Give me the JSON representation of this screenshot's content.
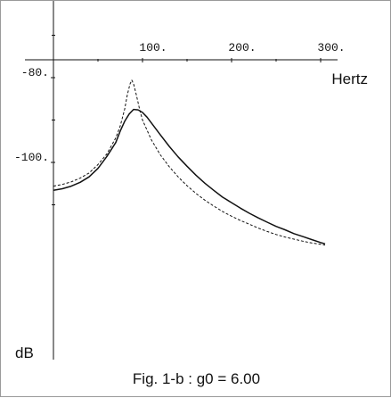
{
  "chart_data": {
    "type": "line",
    "caption": "Fig. 1-b : g0 = 6.00",
    "xlabel": "Hertz",
    "ylabel": "dB",
    "xlim": [
      -5,
      310
    ],
    "ylim": [
      -142,
      -71
    ],
    "x_ticks": [
      100,
      200,
      300
    ],
    "x_tick_labels": [
      "100.",
      "200.",
      "300."
    ],
    "y_ticks": [
      -80,
      -100
    ],
    "y_tick_labels": [
      "-80.",
      "-100."
    ],
    "grid": false,
    "series": [
      {
        "style": "solid",
        "points": [
          [
            0,
            -106.6
          ],
          [
            10,
            -106.2
          ],
          [
            20,
            -105.6
          ],
          [
            30,
            -104.7
          ],
          [
            40,
            -103.4
          ],
          [
            50,
            -101.4
          ],
          [
            60,
            -98.6
          ],
          [
            70,
            -95.3
          ],
          [
            75,
            -92.6
          ],
          [
            80,
            -90.3
          ],
          [
            85,
            -88.6
          ],
          [
            90,
            -87.5
          ],
          [
            95,
            -87.6
          ],
          [
            100,
            -88.2
          ],
          [
            105,
            -89.3
          ],
          [
            110,
            -90.7
          ],
          [
            120,
            -93.5
          ],
          [
            130,
            -96.2
          ],
          [
            140,
            -98.7
          ],
          [
            150,
            -100.9
          ],
          [
            160,
            -103.0
          ],
          [
            170,
            -104.9
          ],
          [
            180,
            -106.6
          ],
          [
            190,
            -108.2
          ],
          [
            200,
            -109.5
          ],
          [
            210,
            -110.8
          ],
          [
            220,
            -112.0
          ],
          [
            230,
            -113.1
          ],
          [
            240,
            -114.1
          ],
          [
            250,
            -115.1
          ],
          [
            260,
            -115.9
          ],
          [
            270,
            -116.8
          ],
          [
            280,
            -117.5
          ],
          [
            290,
            -118.2
          ],
          [
            300,
            -118.9
          ],
          [
            305,
            -119.2
          ]
        ]
      },
      {
        "style": "dashed",
        "points": [
          [
            0,
            -105.6
          ],
          [
            10,
            -105.2
          ],
          [
            20,
            -104.6
          ],
          [
            30,
            -103.7
          ],
          [
            40,
            -102.5
          ],
          [
            50,
            -100.5
          ],
          [
            60,
            -98.0
          ],
          [
            70,
            -94.2
          ],
          [
            75,
            -91.4
          ],
          [
            80,
            -87.4
          ],
          [
            83,
            -84.0
          ],
          [
            86,
            -81.5
          ],
          [
            88,
            -80.6
          ],
          [
            90,
            -81.5
          ],
          [
            93,
            -84.0
          ],
          [
            97,
            -87.7
          ],
          [
            100,
            -90.0
          ],
          [
            110,
            -94.7
          ],
          [
            120,
            -98.2
          ],
          [
            130,
            -101.0
          ],
          [
            140,
            -103.4
          ],
          [
            150,
            -105.5
          ],
          [
            160,
            -107.3
          ],
          [
            170,
            -108.9
          ],
          [
            180,
            -110.3
          ],
          [
            190,
            -111.6
          ],
          [
            200,
            -112.7
          ],
          [
            210,
            -113.7
          ],
          [
            220,
            -114.6
          ],
          [
            230,
            -115.5
          ],
          [
            240,
            -116.3
          ],
          [
            250,
            -117.0
          ],
          [
            260,
            -117.6
          ],
          [
            270,
            -118.1
          ],
          [
            280,
            -118.6
          ],
          [
            290,
            -119.0
          ],
          [
            300,
            -119.3
          ],
          [
            305,
            -119.5
          ]
        ]
      }
    ]
  }
}
